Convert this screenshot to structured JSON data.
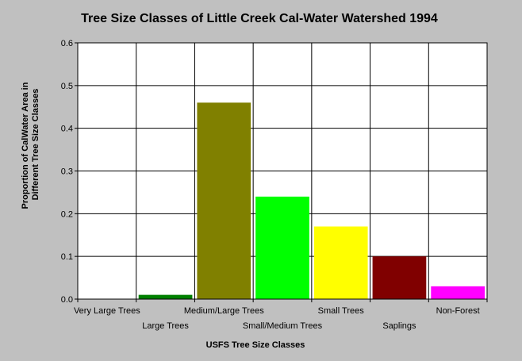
{
  "chart_data": {
    "type": "bar",
    "title": "Tree Size Classes of Little Creek Cal-Water Watershed 1994",
    "xlabel": "USFS Tree Size Classes",
    "ylabel_lines": [
      "Proportion of CalWater Area in",
      "Different Tree Size Classes"
    ],
    "categories": [
      "Very Large Trees",
      "Large Trees",
      "Medium/Large Trees",
      "Small/Medium Trees",
      "Small Trees",
      "Saplings",
      "Non-Forest"
    ],
    "values": [
      0.0,
      0.01,
      0.46,
      0.24,
      0.17,
      0.1,
      0.03
    ],
    "colors": [
      "#008000",
      "#008000",
      "#808000",
      "#00ff00",
      "#ffff00",
      "#800000",
      "#ff00ff"
    ],
    "ylim": [
      0,
      0.6
    ],
    "yticks": [
      "0.0",
      "0.1",
      "0.2",
      "0.3",
      "0.4",
      "0.5",
      "0.6"
    ],
    "grid": true,
    "legend": "none",
    "background": "#c0c0c0",
    "plot_background": "#ffffff"
  }
}
